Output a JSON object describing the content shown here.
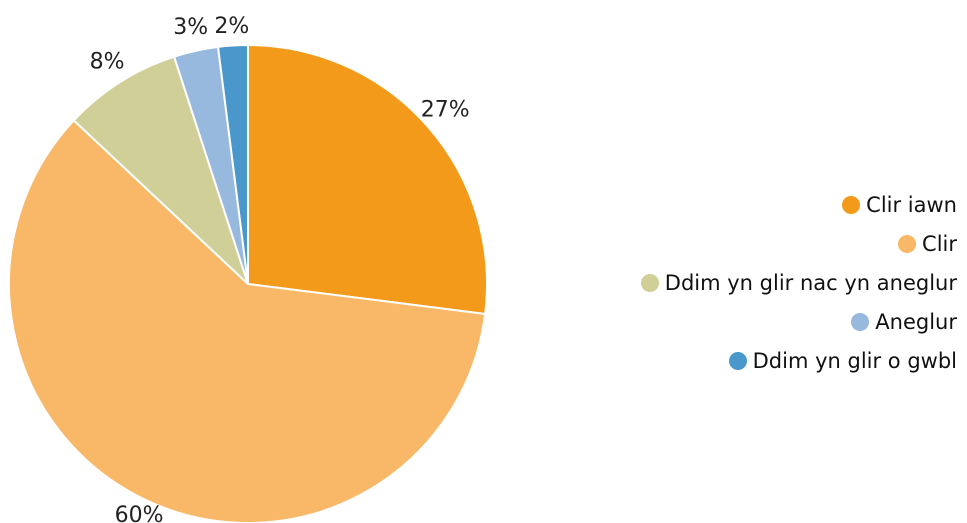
{
  "chart_data": {
    "type": "pie",
    "slices": [
      {
        "label": "Clir iawn",
        "value": 27,
        "display": "27%",
        "color": "#F39A1B"
      },
      {
        "label": "Clir",
        "value": 60,
        "display": "60%",
        "color": "#F8B867"
      },
      {
        "label": "Ddim yn glir nac yn aneglur",
        "value": 8,
        "display": "8%",
        "color": "#D0CF98"
      },
      {
        "label": "Aneglur",
        "value": 3,
        "display": "3%",
        "color": "#97B9DD"
      },
      {
        "label": "Ddim yn glir o gwbl",
        "value": 2,
        "display": "2%",
        "color": "#4A98CB"
      }
    ],
    "start": "12 o'clock",
    "direction": "clockwise",
    "legend_position": "right"
  }
}
